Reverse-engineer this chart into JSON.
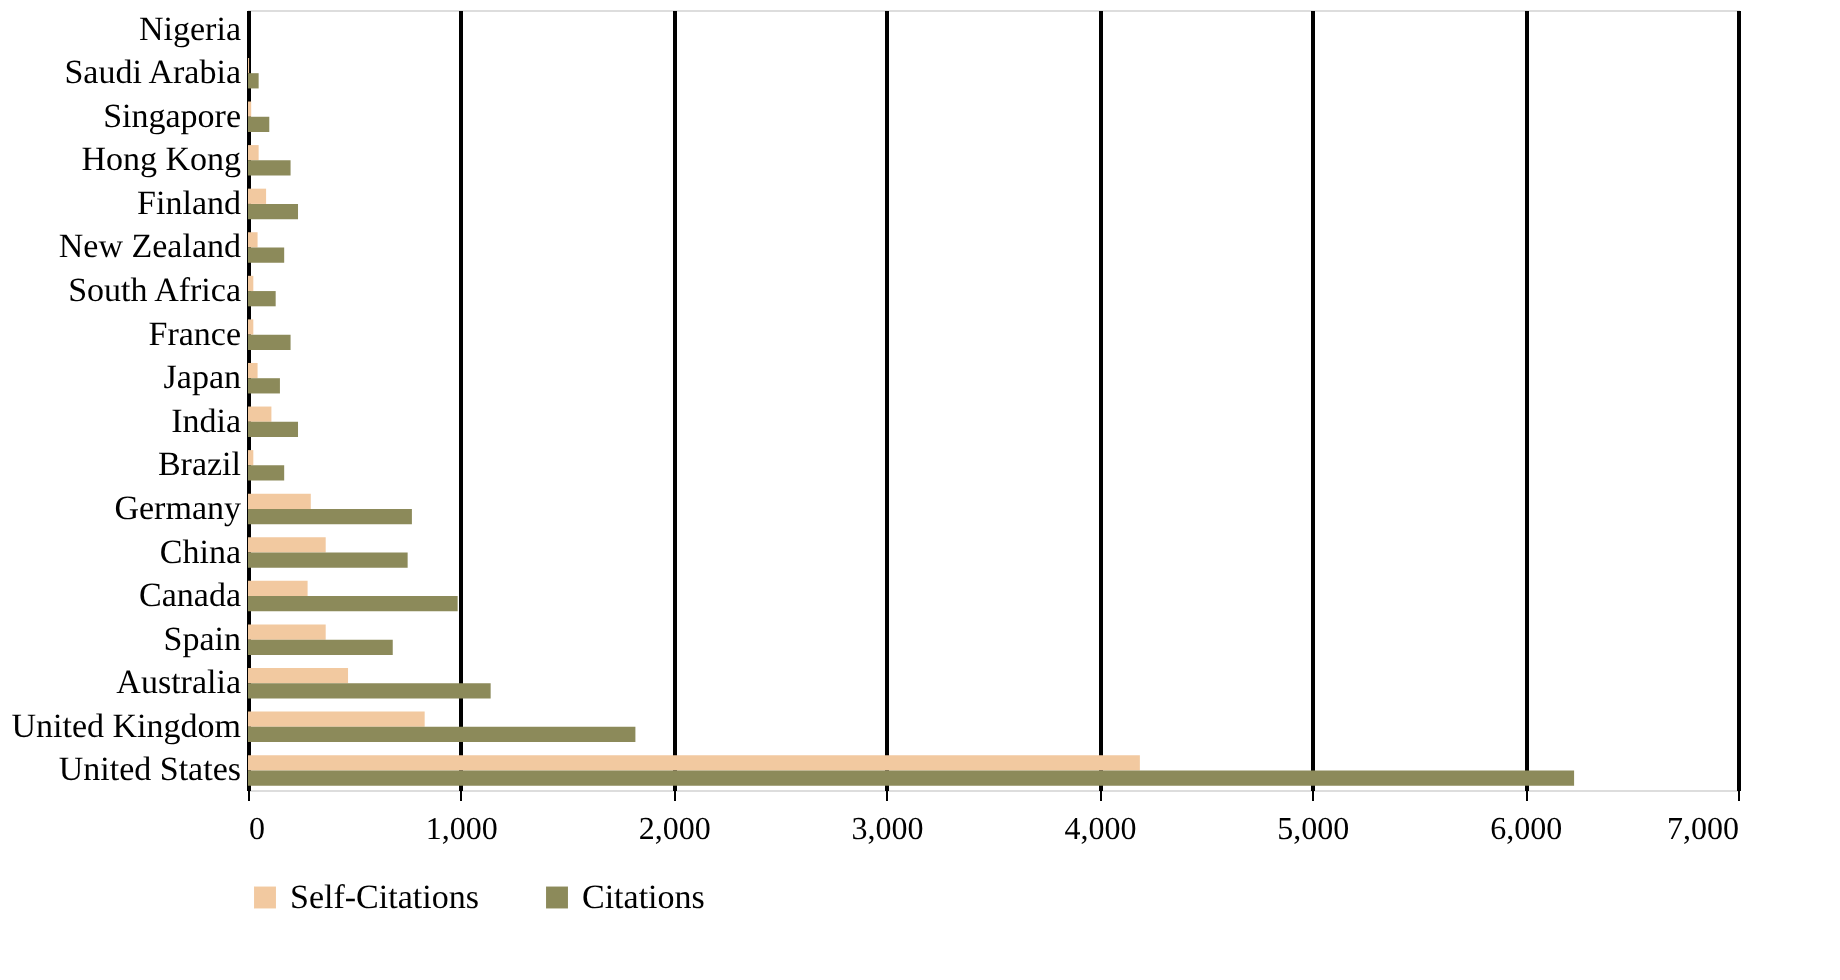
{
  "chart_data": {
    "type": "bar",
    "orientation": "horizontal",
    "categories": [
      "Nigeria",
      "Saudi Arabia",
      "Singapore",
      "Hong Kong",
      "Finland",
      "New Zealand",
      "South  Africa",
      "France",
      "Japan",
      "India",
      "Brazil",
      "Germany",
      "China",
      "Canada",
      "Spain",
      "Australia",
      "United Kingdom",
      "United States"
    ],
    "series": [
      {
        "name": "Self-Citations",
        "color": "#f2c9a0",
        "values": [
          0,
          5,
          15,
          50,
          85,
          45,
          25,
          25,
          45,
          110,
          25,
          295,
          365,
          280,
          365,
          470,
          830,
          4190
        ]
      },
      {
        "name": "Citations",
        "color": "#8c8a5a",
        "values": [
          0,
          50,
          100,
          200,
          235,
          170,
          130,
          200,
          150,
          235,
          170,
          770,
          750,
          985,
          680,
          1140,
          1820,
          6230
        ]
      }
    ],
    "xlim": [
      0,
      7000
    ],
    "xticks": [
      {
        "value": 0,
        "label": "0"
      },
      {
        "value": 1000,
        "label": "1,000"
      },
      {
        "value": 2000,
        "label": "2,000"
      },
      {
        "value": 3000,
        "label": "3,000"
      },
      {
        "value": 4000,
        "label": "4,000"
      },
      {
        "value": 5000,
        "label": "5,000"
      },
      {
        "value": 6000,
        "label": "6,000"
      },
      {
        "value": 7000,
        "label": "7,000"
      }
    ],
    "grid": "x",
    "legend": "bottom"
  }
}
